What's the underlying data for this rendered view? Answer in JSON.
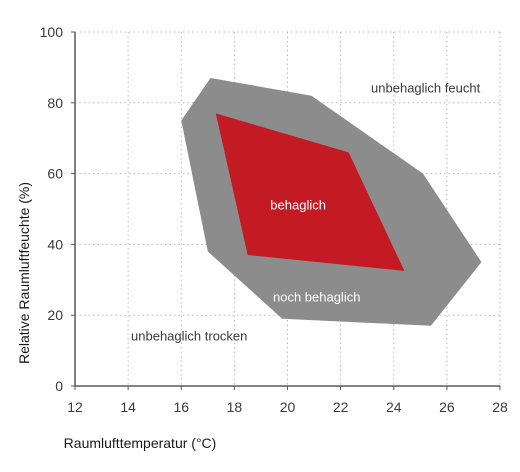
{
  "chart_data": {
    "type": "area",
    "xlabel": "Raumlufttemperatur (°C)",
    "ylabel": "Relative Raumluftfeuchte (%)",
    "xlim": [
      12,
      28
    ],
    "ylim": [
      0,
      100
    ],
    "x_ticks": [
      "12",
      "14",
      "16",
      "18",
      "20",
      "22",
      "24",
      "26",
      "28"
    ],
    "y_ticks": [
      "0",
      "20",
      "40",
      "60",
      "80",
      "100"
    ],
    "grid": true,
    "grid_style": "dotted",
    "regions": [
      {
        "key": "outer",
        "label": "noch behaglich",
        "color": "#8c8c8c",
        "label_color": "#ffffff",
        "label_at": [
          21.1,
          25
        ],
        "points": [
          [
            17.1,
            87
          ],
          [
            20.9,
            82
          ],
          [
            25.1,
            60
          ],
          [
            27.3,
            35
          ],
          [
            25.4,
            17
          ],
          [
            19.8,
            19
          ],
          [
            17.0,
            38
          ],
          [
            16.0,
            75
          ]
        ]
      },
      {
        "key": "inner",
        "label": "behaglich",
        "color": "#c41a24",
        "label_color": "#ffffff",
        "label_at": [
          20.4,
          51
        ],
        "points": [
          [
            17.3,
            77
          ],
          [
            22.3,
            66
          ],
          [
            24.4,
            32.5
          ],
          [
            18.5,
            37
          ]
        ]
      }
    ],
    "annotations": [
      {
        "key": "humid",
        "text": "unbehaglich feucht",
        "x": 25.2,
        "y": 84,
        "color": "#3a3a3a"
      },
      {
        "key": "dry",
        "text": "unbehaglich trocken",
        "x": 16.3,
        "y": 14,
        "color": "#3a3a3a"
      }
    ],
    "colors": {
      "axis": "#5a5a5a",
      "grid": "#b8b8b8",
      "text": "#3a3a3a"
    }
  }
}
